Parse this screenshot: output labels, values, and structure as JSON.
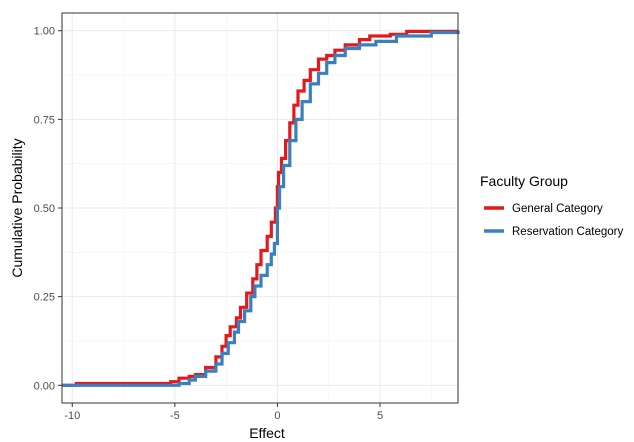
{
  "chart_data": {
    "type": "line",
    "title": "",
    "xlabel": "Effect",
    "ylabel": "Cumulative Probability",
    "xlim": [
      -10.5,
      8.8
    ],
    "ylim": [
      -0.05,
      1.05
    ],
    "x_ticks": [
      -10,
      -5,
      0,
      5
    ],
    "x_tick_labels": [
      "-10",
      "-5",
      "0",
      "5"
    ],
    "y_ticks": [
      0,
      0.25,
      0.5,
      0.75,
      1
    ],
    "y_tick_labels": [
      "0.00",
      "0.25",
      "0.50",
      "0.75",
      "1.00"
    ],
    "grid": true,
    "legend": {
      "title": "Faculty Group",
      "position": "right"
    },
    "series": [
      {
        "name": "General Category",
        "color": "#e31a1c",
        "x": [
          -10.5,
          -9.8,
          -5.2,
          -4.8,
          -4.3,
          -4.0,
          -3.5,
          -3.0,
          -2.7,
          -2.5,
          -2.3,
          -2.0,
          -1.8,
          -1.5,
          -1.2,
          -1.0,
          -0.8,
          -0.5,
          -0.3,
          -0.1,
          0.0,
          0.05,
          0.2,
          0.4,
          0.6,
          0.8,
          1.0,
          1.3,
          1.6,
          2.0,
          2.4,
          2.8,
          3.3,
          4.0,
          4.5,
          5.5,
          6.3,
          8.8
        ],
        "y": [
          0,
          0.005,
          0.01,
          0.02,
          0.025,
          0.03,
          0.05,
          0.08,
          0.11,
          0.14,
          0.165,
          0.19,
          0.22,
          0.26,
          0.3,
          0.34,
          0.38,
          0.42,
          0.46,
          0.5,
          0.56,
          0.6,
          0.64,
          0.69,
          0.74,
          0.79,
          0.83,
          0.86,
          0.89,
          0.92,
          0.93,
          0.945,
          0.96,
          0.975,
          0.985,
          0.99,
          0.998,
          1.0
        ]
      },
      {
        "name": "Reservation Category",
        "color": "#3a7fbe",
        "x": [
          -10.5,
          -4.8,
          -4.3,
          -4.0,
          -3.5,
          -3.0,
          -2.7,
          -2.4,
          -2.1,
          -1.9,
          -1.6,
          -1.3,
          -1.1,
          -0.8,
          -0.5,
          -0.3,
          -0.15,
          0.0,
          0.1,
          0.3,
          0.6,
          0.9,
          1.2,
          1.6,
          2.0,
          2.4,
          2.8,
          3.3,
          4.0,
          4.8,
          5.8,
          7.5,
          8.8
        ],
        "y": [
          0,
          0.005,
          0.015,
          0.025,
          0.04,
          0.06,
          0.09,
          0.12,
          0.15,
          0.18,
          0.21,
          0.25,
          0.28,
          0.31,
          0.34,
          0.37,
          0.4,
          0.5,
          0.56,
          0.62,
          0.69,
          0.75,
          0.8,
          0.85,
          0.88,
          0.91,
          0.93,
          0.95,
          0.96,
          0.97,
          0.985,
          0.995,
          1.0
        ]
      }
    ]
  }
}
